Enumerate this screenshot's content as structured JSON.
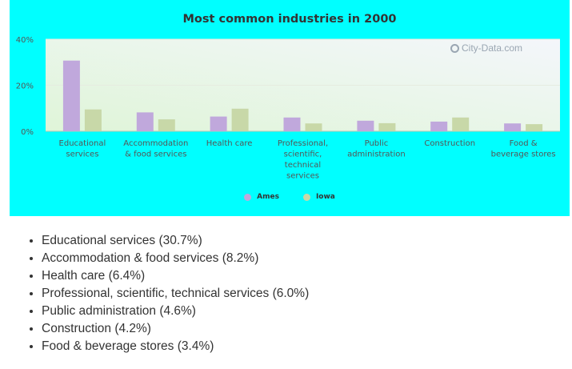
{
  "chart_data": {
    "type": "bar",
    "title": "Most common industries in 2000",
    "categories": [
      [
        "Educational",
        "services"
      ],
      [
        "Accommodation",
        "& food services"
      ],
      [
        "Health care"
      ],
      [
        "Professional,",
        "scientific,",
        "technical",
        "services"
      ],
      [
        "Public",
        "administration"
      ],
      [
        "Construction"
      ],
      [
        "Food &",
        "beverage stores"
      ]
    ],
    "series": [
      {
        "name": "Ames",
        "color": "#c0a8dc",
        "values": [
          30.7,
          8.2,
          6.4,
          6.0,
          4.6,
          4.2,
          3.4
        ]
      },
      {
        "name": "Iowa",
        "color": "#c8d8a8",
        "values": [
          9.5,
          5.2,
          9.8,
          3.4,
          3.5,
          6.0,
          3.1
        ]
      }
    ],
    "y_ticks": [
      "0%",
      "20%",
      "40%"
    ],
    "ylim": [
      0,
      40
    ],
    "grid": true,
    "legend": "bottom-center",
    "watermark": "City-Data.com"
  },
  "summary": [
    "Educational services (30.7%)",
    "Accommodation & food services (8.2%)",
    "Health care (6.4%)",
    "Professional, scientific, technical services (6.0%)",
    "Public administration (4.6%)",
    "Construction (4.2%)",
    "Food & beverage stores (3.4%)"
  ]
}
